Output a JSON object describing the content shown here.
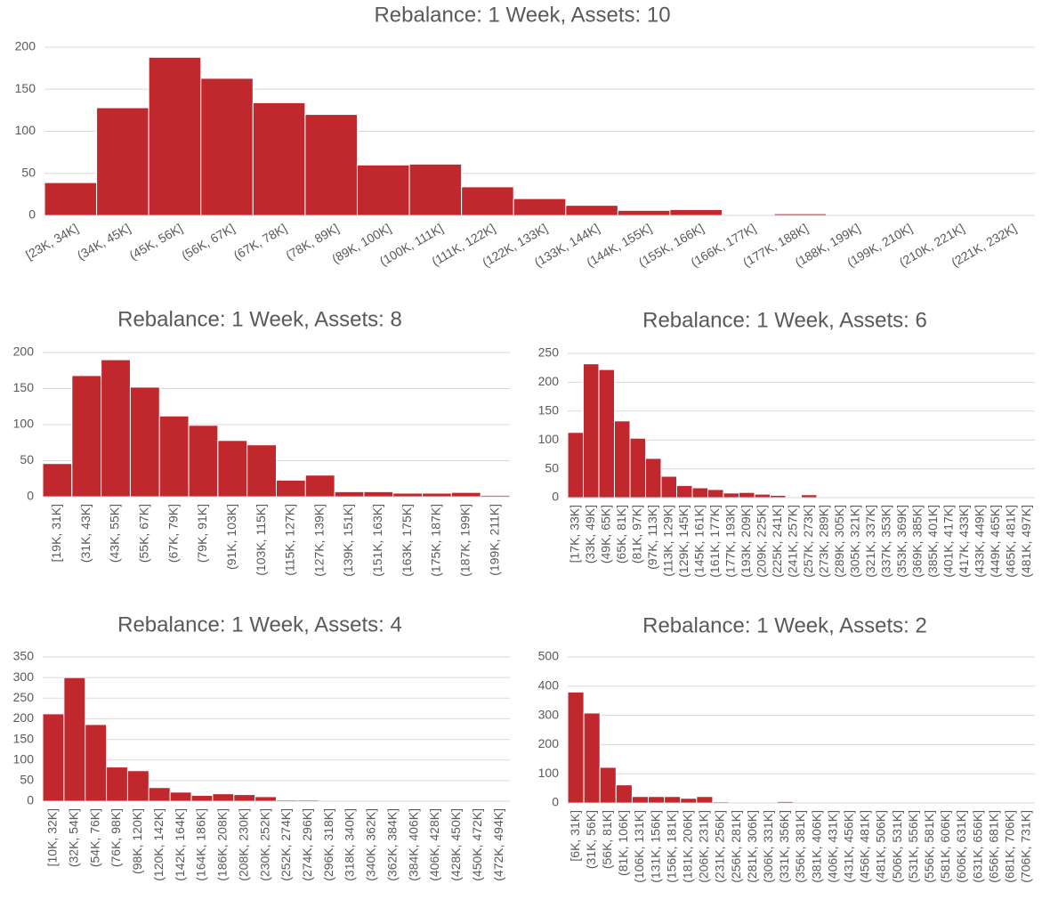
{
  "chart_data": [
    {
      "type": "bar",
      "title": "Rebalance: 1 Week, Assets: 10",
      "color": "#c0282d",
      "grid": true,
      "ylim": [
        0,
        200
      ],
      "yticks": [
        0,
        50,
        100,
        150,
        200
      ],
      "categories": [
        "[23K, 34K]",
        "(34K, 45K]",
        "(45K, 56K]",
        "(56K, 67K]",
        "(67K, 78K]",
        "(78K, 89K]",
        "(89K, 100K]",
        "(100K, 111K]",
        "(111K, 122K]",
        "(122K, 133K]",
        "(133K, 144K]",
        "(144K, 155K]",
        "(155K, 166K]",
        "(166K, 177K]",
        "(177K, 188K]",
        "(188K, 199K]",
        "(199K, 210K]",
        "(210K, 221K]",
        "(221K, 232K]"
      ],
      "values": [
        39,
        128,
        188,
        163,
        134,
        120,
        60,
        61,
        34,
        20,
        12,
        6,
        7,
        1,
        2,
        1,
        0,
        0,
        0
      ]
    },
    {
      "type": "bar",
      "title": "Rebalance: 1 Week, Assets: 8",
      "color": "#c0282d",
      "grid": true,
      "ylim": [
        0,
        200
      ],
      "yticks": [
        0,
        50,
        100,
        150,
        200
      ],
      "categories": [
        "[19K, 31K]",
        "(31K, 43K]",
        "(43K, 55K]",
        "(55K, 67K]",
        "(67K, 79K]",
        "(79K, 91K]",
        "(91K, 103K]",
        "(103K, 115K]",
        "(115K, 127K]",
        "(127K, 139K]",
        "(139K, 151K]",
        "(151K, 163K]",
        "(163K, 175K]",
        "(175K, 187K]",
        "(187K, 199K]",
        "(199K, 211K]"
      ],
      "values": [
        46,
        168,
        190,
        152,
        112,
        99,
        78,
        72,
        23,
        30,
        7,
        7,
        5,
        5,
        6,
        2
      ]
    },
    {
      "type": "bar",
      "title": "Rebalance: 1 Week, Assets: 6",
      "color": "#c0282d",
      "grid": true,
      "ylim": [
        0,
        250
      ],
      "yticks": [
        0,
        50,
        100,
        150,
        200,
        250
      ],
      "categories": [
        "[17K, 33K]",
        "(33K, 49K]",
        "(49K, 65K]",
        "(65K, 81K]",
        "(81K, 97K]",
        "(97K, 113K]",
        "(113K, 129K]",
        "(129K, 145K]",
        "(145K, 161K]",
        "(161K, 177K]",
        "(177K, 193K]",
        "(193K, 209K]",
        "(209K, 225K]",
        "(225K, 241K]",
        "(241K, 257K]",
        "(257K, 273K]",
        "(273K, 289K]",
        "(289K, 305K]",
        "(305K, 321K]",
        "(321K, 337K]",
        "(337K, 353K]",
        "(353K, 369K]",
        "(369K, 385K]",
        "(385K, 401K]",
        "(401K, 417K]",
        "(417K, 433K]",
        "(433K, 449K]",
        "(449K, 465K]",
        "(465K, 481K]",
        "(481K, 497K]"
      ],
      "values": [
        113,
        232,
        222,
        133,
        103,
        68,
        37,
        21,
        17,
        14,
        8,
        9,
        6,
        4,
        1,
        5,
        0,
        0,
        0,
        0,
        0,
        0,
        0,
        0,
        0,
        0,
        0,
        0,
        0,
        0
      ]
    },
    {
      "type": "bar",
      "title": "Rebalance: 1 Week, Assets: 4",
      "color": "#c0282d",
      "grid": true,
      "ylim": [
        0,
        350
      ],
      "yticks": [
        0,
        50,
        100,
        150,
        200,
        250,
        300,
        350
      ],
      "categories": [
        "[10K, 32K]",
        "(32K, 54K]",
        "(54K, 76K]",
        "(76K, 98K]",
        "(98K, 120K]",
        "(120K, 142K]",
        "(142K, 164K]",
        "(164K, 186K]",
        "(186K, 208K]",
        "(208K, 230K]",
        "(230K, 252K]",
        "(252K, 274K]",
        "(274K, 296K]",
        "(296K, 318K]",
        "(318K, 340K]",
        "(340K, 362K]",
        "(362K, 384K]",
        "(384K, 406K]",
        "(406K, 428K]",
        "(428K, 450K]",
        "(450K, 472K]",
        "(472K, 494K]"
      ],
      "values": [
        212,
        300,
        186,
        83,
        74,
        33,
        22,
        14,
        18,
        16,
        11,
        3,
        3,
        0,
        0,
        0,
        0,
        0,
        0,
        0,
        0,
        0
      ]
    },
    {
      "type": "bar",
      "title": "Rebalance: 1 Week, Assets: 2",
      "color": "#c0282d",
      "grid": true,
      "ylim": [
        0,
        500
      ],
      "yticks": [
        0,
        100,
        200,
        300,
        400,
        500
      ],
      "categories": [
        "[6K, 31K]",
        "(31K, 56K]",
        "(56K, 81K]",
        "(81K, 106K]",
        "(106K, 131K]",
        "(131K, 156K]",
        "(156K, 181K]",
        "(181K, 206K]",
        "(206K, 231K]",
        "(231K, 256K]",
        "(256K, 281K]",
        "(281K, 306K]",
        "(306K, 331K]",
        "(331K, 356K]",
        "(356K, 381K]",
        "(381K, 406K]",
        "(406K, 431K]",
        "(431K, 456K]",
        "(456K, 481K]",
        "(481K, 506K]",
        "(506K, 531K]",
        "(531K, 556K]",
        "(556K, 581K]",
        "(581K, 606K]",
        "(606K, 631K]",
        "(631K, 656K]",
        "(656K, 681K]",
        "(681K, 706K]",
        "(706K, 731K]"
      ],
      "values": [
        380,
        308,
        122,
        62,
        22,
        22,
        22,
        16,
        22,
        4,
        1,
        1,
        0,
        5,
        0,
        0,
        0,
        0,
        0,
        0,
        0,
        0,
        0,
        0,
        0,
        0,
        0,
        0,
        0
      ]
    }
  ]
}
